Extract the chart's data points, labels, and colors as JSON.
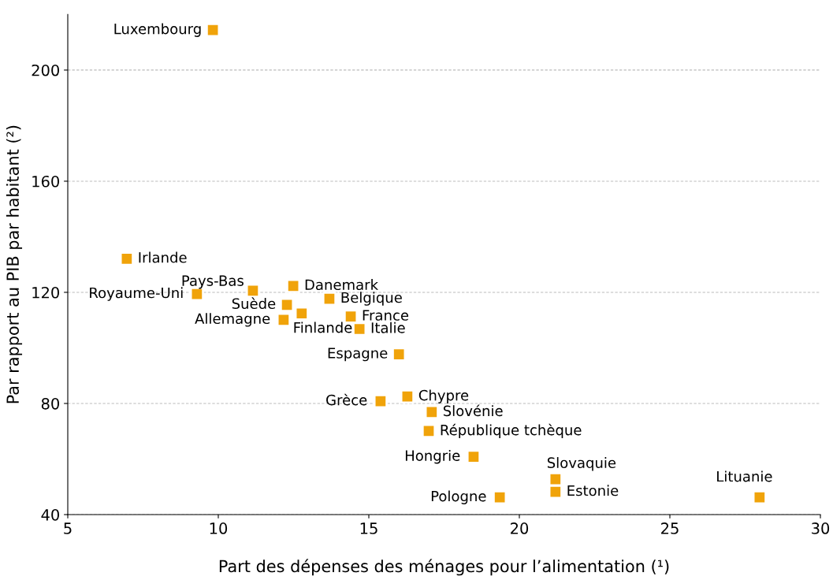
{
  "chart_data": {
    "type": "scatter",
    "xlabel": "Part des dépenses des ménages pour l’alimentation (¹)",
    "ylabel": "Par rapport au PIB par habitant (²)",
    "xlim": [
      5,
      30
    ],
    "xticks": [
      5,
      10,
      15,
      20,
      25,
      30
    ],
    "ylim": [
      40,
      220
    ],
    "yticks": [
      40,
      80,
      120,
      160,
      200
    ],
    "grid": "y",
    "marker": "square",
    "series": [
      {
        "color": "#f0a30a",
        "x": [
          9.82,
          6.96,
          11.15,
          9.29,
          12.49,
          12.28,
          12.17,
          12.77,
          13.69,
          14.4,
          14.69,
          16.0,
          15.39,
          16.28,
          17.09,
          16.99,
          18.48,
          21.2,
          21.2,
          19.35,
          27.98
        ],
        "values": [
          214.4,
          132.1,
          120.6,
          119.4,
          122.3,
          115.5,
          110.1,
          112.4,
          117.7,
          111.3,
          106.8,
          97.7,
          80.8,
          82.5,
          76.9,
          70.1,
          60.8,
          52.7,
          48.2,
          46.2,
          46.2
        ]
      }
    ],
    "annotations": [
      {
        "text": "Luxembourg",
        "x": 9.82,
        "y": 214.4
      },
      {
        "text": "Irlande",
        "x": 6.96,
        "y": 132.1
      },
      {
        "text": "Pays-Bas",
        "x": 11.15,
        "y": 120.6
      },
      {
        "text": "Royaume-Uni",
        "x": 9.29,
        "y": 119.4
      },
      {
        "text": "Danemark",
        "x": 12.49,
        "y": 122.3
      },
      {
        "text": "Suède",
        "x": 12.28,
        "y": 115.5
      },
      {
        "text": "Allemagne",
        "x": 12.17,
        "y": 110.1
      },
      {
        "text": "Finlande",
        "x": 12.77,
        "y": 112.4
      },
      {
        "text": "Belgique",
        "x": 13.69,
        "y": 117.7
      },
      {
        "text": "France",
        "x": 14.4,
        "y": 111.3
      },
      {
        "text": "Italie",
        "x": 14.69,
        "y": 106.8
      },
      {
        "text": "Espagne",
        "x": 16.0,
        "y": 97.7
      },
      {
        "text": "Grèce",
        "x": 15.39,
        "y": 80.8
      },
      {
        "text": "Chypre",
        "x": 16.28,
        "y": 82.5
      },
      {
        "text": "Slovénie",
        "x": 17.09,
        "y": 76.9
      },
      {
        "text": "République tchèque",
        "x": 16.99,
        "y": 70.1
      },
      {
        "text": "Hongrie",
        "x": 18.48,
        "y": 60.8
      },
      {
        "text": "Slovaquie",
        "x": 21.2,
        "y": 52.7
      },
      {
        "text": "Estonie",
        "x": 21.2,
        "y": 48.2
      },
      {
        "text": "Pologne",
        "x": 19.35,
        "y": 46.2
      },
      {
        "text": "Lituanie",
        "x": 27.98,
        "y": 46.2
      }
    ]
  }
}
